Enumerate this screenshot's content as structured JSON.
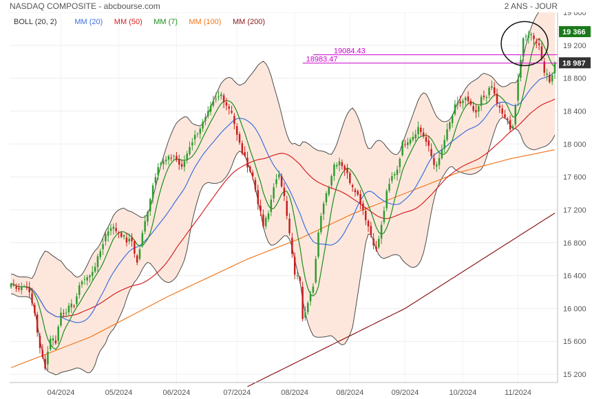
{
  "header": {
    "title": "NASDAQ COMPOSITE - abcbourse.com",
    "period": "2 ANS - JOUR"
  },
  "colors": {
    "up": "#2e9b2e",
    "down": "#c81e1e",
    "boll_line": "#4a4a4a",
    "boll_fill": "#fde7dc",
    "ma20": "#3a6fe0",
    "ma50": "#d42020",
    "ma7": "#1a8c1a",
    "ma100": "#f07820",
    "ma200": "#8a1515",
    "level": "#cc00cc",
    "badge_green": "#1a7a1a",
    "badge_dark": "#333333",
    "grid": "#ececec"
  },
  "chart_data": {
    "type": "candlestick",
    "title": "NASDAQ COMPOSITE",
    "y_range": [
      15100,
      19600
    ],
    "y_ticks": [
      15200,
      15600,
      16000,
      16400,
      16800,
      17200,
      17600,
      18000,
      18400,
      18800,
      19200,
      19600
    ],
    "y_tick_labels": [
      "15 200",
      "15 600",
      "16 000",
      "16 400",
      "16 800",
      "17 200",
      "17 600",
      "18 000",
      "18 400",
      "18 800",
      "19 200",
      "19 600"
    ],
    "x_labels": [
      "04/2024",
      "05/2024",
      "06/2024",
      "07/2024",
      "08/2024",
      "08/2024",
      "09/2024",
      "10/2024",
      "11/2024"
    ],
    "x_label_days": [
      19,
      41,
      63,
      86,
      108,
      129,
      150,
      172,
      193
    ],
    "legend": [
      {
        "label": "BOLL (20, 2)",
        "color": "#333333"
      },
      {
        "label": "MM (20)",
        "color": "#3a6fe0"
      },
      {
        "label": "MM (50)",
        "color": "#d42020"
      },
      {
        "label": "MM (7)",
        "color": "#1a8c1a"
      },
      {
        "label": "MM (100)",
        "color": "#f07820"
      },
      {
        "label": "MM (200)",
        "color": "#8a1515"
      }
    ],
    "levels": [
      {
        "value": 19084.43,
        "label": "19084.43",
        "x_from_day": 115
      },
      {
        "value": 18983.47,
        "label": "18983.47",
        "x_from_day": 111
      }
    ],
    "price_badges": [
      {
        "value": 19366,
        "label": "19 366",
        "style": "green"
      },
      {
        "value": 18987,
        "label": "18 987",
        "style": "dark"
      }
    ],
    "circle_annotation": {
      "day": 195.5,
      "value": 19220
    },
    "close_anchors": [
      [
        0,
        16300
      ],
      [
        3,
        16250
      ],
      [
        6,
        16280
      ],
      [
        9,
        15950
      ],
      [
        11,
        15500
      ],
      [
        13,
        15300
      ],
      [
        15,
        15650
      ],
      [
        17,
        15600
      ],
      [
        19,
        15950
      ],
      [
        21,
        15980
      ],
      [
        24,
        16050
      ],
      [
        27,
        16350
      ],
      [
        30,
        16390
      ],
      [
        33,
        16600
      ],
      [
        36,
        16900
      ],
      [
        38,
        17000
      ],
      [
        40,
        16950
      ],
      [
        42,
        16900
      ],
      [
        44,
        16820
      ],
      [
        46,
        16820
      ],
      [
        48,
        16550
      ],
      [
        50,
        16900
      ],
      [
        52,
        17200
      ],
      [
        54,
        17500
      ],
      [
        56,
        17750
      ],
      [
        59,
        17800
      ],
      [
        62,
        17860
      ],
      [
        65,
        17700
      ],
      [
        68,
        17980
      ],
      [
        71,
        18150
      ],
      [
        74,
        18300
      ],
      [
        77,
        18500
      ],
      [
        80,
        18600
      ],
      [
        82,
        18480
      ],
      [
        84,
        18400
      ],
      [
        86,
        18100
      ],
      [
        88,
        17900
      ],
      [
        90,
        17750
      ],
      [
        92,
        17600
      ],
      [
        94,
        17300
      ],
      [
        96,
        17000
      ],
      [
        98,
        17150
      ],
      [
        100,
        17500
      ],
      [
        102,
        17600
      ],
      [
        104,
        17400
      ],
      [
        106,
        16900
      ],
      [
        108,
        16400
      ],
      [
        110,
        16350
      ],
      [
        111,
        15850
      ],
      [
        113,
        16100
      ],
      [
        115,
        16300
      ],
      [
        117,
        16900
      ],
      [
        119,
        17300
      ],
      [
        121,
        17500
      ],
      [
        123,
        17750
      ],
      [
        125,
        17800
      ],
      [
        127,
        17700
      ],
      [
        129,
        17550
      ],
      [
        131,
        17450
      ],
      [
        133,
        17300
      ],
      [
        135,
        17100
      ],
      [
        137,
        16900
      ],
      [
        139,
        16700
      ],
      [
        141,
        17000
      ],
      [
        143,
        17400
      ],
      [
        145,
        17600
      ],
      [
        147,
        17700
      ],
      [
        149,
        18000
      ],
      [
        151,
        18050
      ],
      [
        153,
        18100
      ],
      [
        155,
        18200
      ],
      [
        157,
        18100
      ],
      [
        159,
        17950
      ],
      [
        161,
        17750
      ],
      [
        163,
        17800
      ],
      [
        165,
        18050
      ],
      [
        167,
        18250
      ],
      [
        169,
        18450
      ],
      [
        171,
        18500
      ],
      [
        173,
        18550
      ],
      [
        175,
        18450
      ],
      [
        177,
        18350
      ],
      [
        179,
        18550
      ],
      [
        181,
        18600
      ],
      [
        183,
        18700
      ],
      [
        185,
        18500
      ],
      [
        187,
        18350
      ],
      [
        189,
        18300
      ],
      [
        190,
        18150
      ],
      [
        191,
        18200
      ],
      [
        193,
        18800
      ],
      [
        195,
        19250
      ],
      [
        197,
        19350
      ],
      [
        199,
        19300
      ],
      [
        201,
        19200
      ],
      [
        203,
        18900
      ],
      [
        205,
        18750
      ],
      [
        207,
        18987
      ]
    ],
    "ma200_anchors": [
      [
        90,
        15050
      ],
      [
        150,
        16000
      ],
      [
        207,
        17160
      ]
    ],
    "ma100_anchors": [
      [
        0,
        15280
      ],
      [
        30,
        15650
      ],
      [
        60,
        16150
      ],
      [
        90,
        16600
      ],
      [
        110,
        16850
      ],
      [
        130,
        17150
      ],
      [
        150,
        17400
      ],
      [
        170,
        17650
      ],
      [
        190,
        17820
      ],
      [
        207,
        17930
      ]
    ]
  }
}
